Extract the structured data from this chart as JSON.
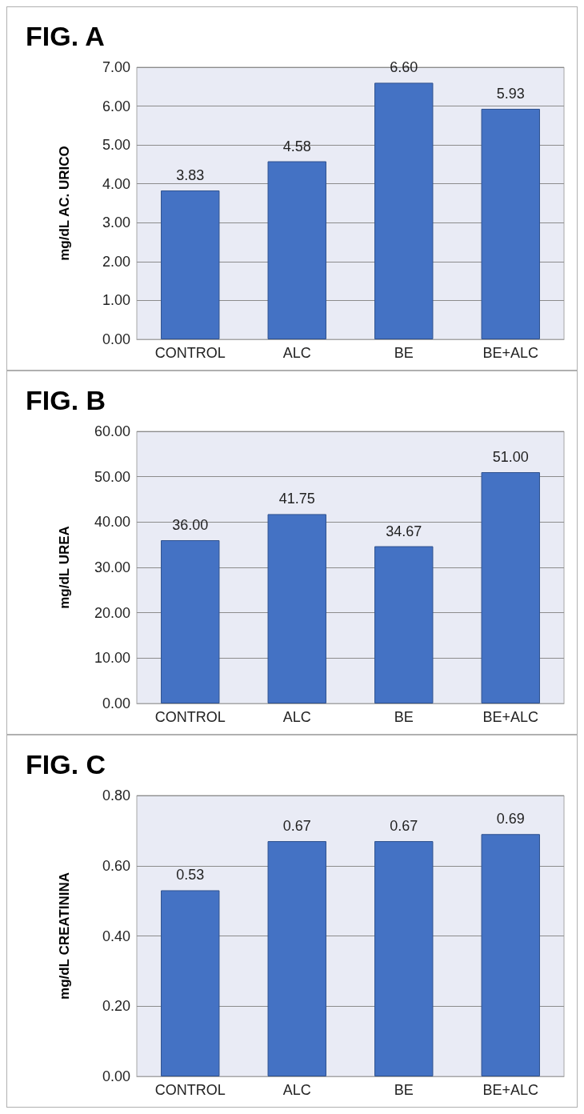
{
  "chart_data": [
    {
      "type": "bar",
      "title": "FIG. A",
      "ylabel": "mg/dL AC. URICO",
      "categories": [
        "CONTROL",
        "ALC",
        "BE",
        "BE+ALC"
      ],
      "values": [
        3.83,
        4.58,
        6.6,
        5.93
      ],
      "value_labels": [
        "3.83",
        "4.58",
        "6.60",
        "5.93"
      ],
      "color": "#4472c4",
      "ylim": [
        0,
        7
      ],
      "yticks": [
        {
          "value": 0,
          "label": "0.00"
        },
        {
          "value": 1,
          "label": "1.00"
        },
        {
          "value": 2,
          "label": "2.00"
        },
        {
          "value": 3,
          "label": "3.00"
        },
        {
          "value": 4,
          "label": "4.00"
        },
        {
          "value": 5,
          "label": "5.00"
        },
        {
          "value": 6,
          "label": "6.00"
        },
        {
          "value": 7,
          "label": "7.00"
        }
      ],
      "grid": "y"
    },
    {
      "type": "bar",
      "title": "FIG. B",
      "ylabel": "mg/dL UREA",
      "categories": [
        "CONTROL",
        "ALC",
        "BE",
        "BE+ALC"
      ],
      "values": [
        36,
        41.75,
        34.67,
        51
      ],
      "value_labels": [
        "36.00",
        "41.75",
        "34.67",
        "51.00"
      ],
      "color": "#4472c4",
      "ylim": [
        0,
        60
      ],
      "yticks": [
        {
          "value": 0,
          "label": "0.00"
        },
        {
          "value": 10,
          "label": "10.00"
        },
        {
          "value": 20,
          "label": "20.00"
        },
        {
          "value": 30,
          "label": "30.00"
        },
        {
          "value": 40,
          "label": "40.00"
        },
        {
          "value": 50,
          "label": "50.00"
        },
        {
          "value": 60,
          "label": "60.00"
        }
      ],
      "grid": "y"
    },
    {
      "type": "bar",
      "title": "FIG. C",
      "ylabel": "mg/dL CREATININA",
      "categories": [
        "CONTROL",
        "ALC",
        "BE",
        "BE+ALC"
      ],
      "values": [
        0.53,
        0.67,
        0.67,
        0.69
      ],
      "value_labels": [
        "0.53",
        "0.67",
        "0.67",
        "0.69"
      ],
      "color": "#4472c4",
      "ylim": [
        0,
        0.8
      ],
      "yticks": [
        {
          "value": 0,
          "label": "0.00"
        },
        {
          "value": 0.2,
          "label": "0.20"
        },
        {
          "value": 0.4,
          "label": "0.40"
        },
        {
          "value": 0.6,
          "label": "0.60"
        },
        {
          "value": 0.8,
          "label": "0.80"
        }
      ],
      "grid": "y"
    }
  ]
}
